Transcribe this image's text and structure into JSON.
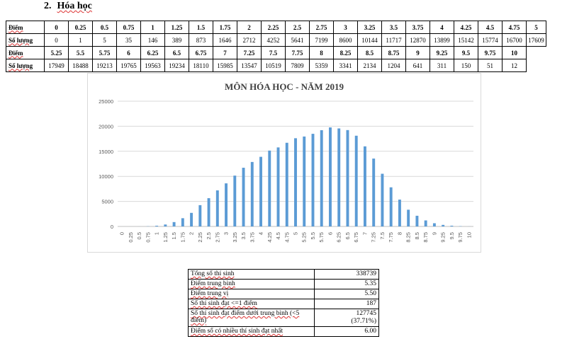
{
  "heading": {
    "number": "2.",
    "title": "Hóa học"
  },
  "score_table": {
    "row1": {
      "points_label": "Điểm",
      "count_label": "Số lượng",
      "points": [
        "0",
        "0.25",
        "0.5",
        "0.75",
        "1",
        "1.25",
        "1.5",
        "1.75",
        "2",
        "2.25",
        "2.5",
        "2.75",
        "3",
        "3.25",
        "3.5",
        "3.75",
        "4",
        "4.25",
        "4.5",
        "4.75",
        "5"
      ],
      "counts": [
        "0",
        "1",
        "5",
        "35",
        "146",
        "389",
        "873",
        "1646",
        "2712",
        "4252",
        "5641",
        "7199",
        "8600",
        "10144",
        "11717",
        "12870",
        "13899",
        "15142",
        "15774",
        "16700",
        "17609"
      ]
    },
    "row2": {
      "points_label": "Điểm",
      "count_label": "Số lượng",
      "points": [
        "5.25",
        "5.5",
        "5.75",
        "6",
        "6.25",
        "6.5",
        "6.75",
        "7",
        "7.25",
        "7.5",
        "7.75",
        "8",
        "8.25",
        "8.5",
        "8.75",
        "9",
        "9.25",
        "9.5",
        "9.75",
        "10"
      ],
      "counts": [
        "17949",
        "18488",
        "19213",
        "19765",
        "19563",
        "19234",
        "18110",
        "15985",
        "13547",
        "10519",
        "7809",
        "5359",
        "3341",
        "2134",
        "1204",
        "641",
        "311",
        "150",
        "51",
        "12"
      ]
    }
  },
  "chart_data": {
    "type": "bar",
    "title": "MÔN HÓA HỌC - NĂM 2019",
    "xlabel": "",
    "ylabel": "",
    "ylim": [
      0,
      25000
    ],
    "yticks": [
      "0",
      "5000",
      "10000",
      "15000",
      "20000",
      "25000"
    ],
    "grid": true,
    "color": "#5b9bd5",
    "categories": [
      "0",
      "0.25",
      "0.5",
      "0.75",
      "1",
      "1.25",
      "1.5",
      "1.75",
      "2",
      "2.25",
      "2.5",
      "2.75",
      "3",
      "3.25",
      "3.5",
      "3.75",
      "4",
      "4.25",
      "4.5",
      "4.75",
      "5",
      "5.25",
      "5.5",
      "5.75",
      "6",
      "6.25",
      "6.5",
      "6.75",
      "7",
      "7.25",
      "7.5",
      "7.75",
      "8",
      "8.25",
      "8.5",
      "8.75",
      "9",
      "9.25",
      "9.5",
      "9.75",
      "10"
    ],
    "values": [
      0,
      1,
      5,
      35,
      146,
      389,
      873,
      1646,
      2712,
      4252,
      5641,
      7199,
      8600,
      10144,
      11717,
      12870,
      13899,
      15142,
      15774,
      16700,
      17609,
      17949,
      18488,
      19213,
      19765,
      19563,
      19234,
      18110,
      15985,
      13547,
      10519,
      7809,
      5359,
      3341,
      2134,
      1204,
      641,
      311,
      150,
      51,
      12
    ]
  },
  "stats": [
    {
      "label": "Tổng số thí sinh",
      "value": "338739",
      "value2": ""
    },
    {
      "label": "Điểm trung bình",
      "value": "5.35",
      "value2": ""
    },
    {
      "label": "Điểm trung vị",
      "value": "5.50",
      "value2": ""
    },
    {
      "label": "Số thí sinh đạt <=1 điểm",
      "value": "187",
      "value2": ""
    },
    {
      "label": "Số thí sinh đạt điểm dưới trung bình (<5 điểm)",
      "value": "127745",
      "value2": "(37.71%)"
    },
    {
      "label": "Điểm số có nhiều thí sinh đạt nhất",
      "value": "6.00",
      "value2": ""
    }
  ]
}
